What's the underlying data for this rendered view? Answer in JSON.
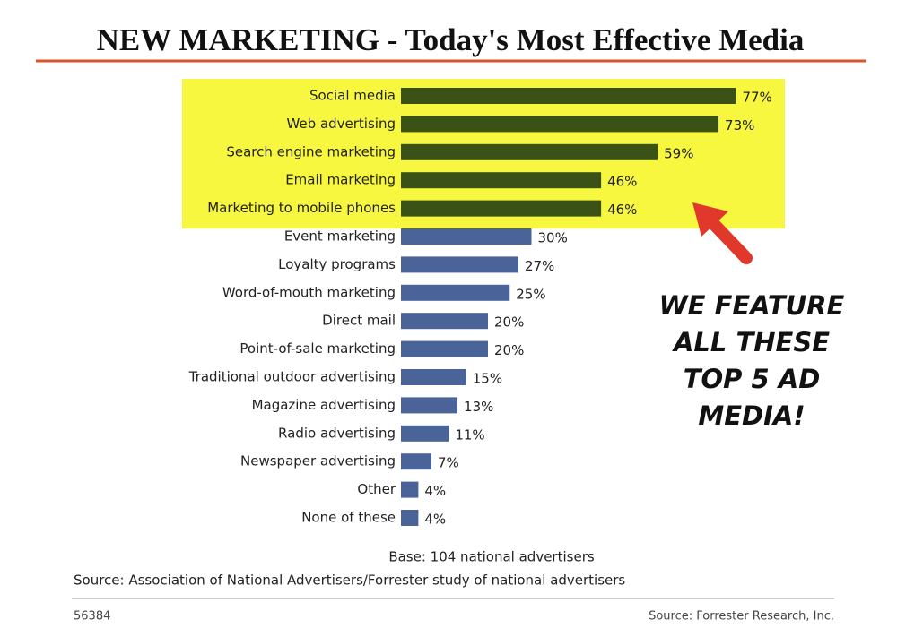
{
  "chart_data": {
    "type": "bar",
    "title": "NEW MARKETING - Today's Most Effective Media",
    "categories": [
      "Social media",
      "Web advertising",
      "Search engine marketing",
      "Email marketing",
      "Marketing to mobile phones",
      "Event marketing",
      "Loyalty programs",
      "Word-of-mouth marketing",
      "Direct mail",
      "Point-of-sale marketing",
      "Traditional outdoor advertising",
      "Magazine advertising",
      "Radio advertising",
      "Newspaper advertising",
      "Other",
      "None of these"
    ],
    "values": [
      77,
      73,
      59,
      46,
      46,
      30,
      27,
      25,
      20,
      20,
      15,
      13,
      11,
      7,
      4,
      4
    ],
    "value_labels": [
      "77%",
      "73%",
      "59%",
      "46%",
      "46%",
      "30%",
      "27%",
      "25%",
      "20%",
      "20%",
      "15%",
      "13%",
      "11%",
      "7%",
      "4%",
      "4%"
    ],
    "colors": [
      "#3b5216",
      "#3b5216",
      "#3b5216",
      "#3b5216",
      "#3b5216",
      "#4a6499",
      "#4a6499",
      "#4a6499",
      "#4a6499",
      "#4a6499",
      "#4a6499",
      "#4a6499",
      "#4a6499",
      "#4a6499",
      "#4a6499",
      "#4a6499"
    ],
    "annotation": [
      "WE FEATURE",
      "ALL THESE",
      "TOP 5 AD",
      "MEDIA!"
    ],
    "base_note": "Base: 104 national advertisers",
    "study_source": "Source: Association of National Advertisers/Forrester study of national advertisers",
    "figure_id": "56384",
    "source": "Source: Forrester Research, Inc."
  }
}
